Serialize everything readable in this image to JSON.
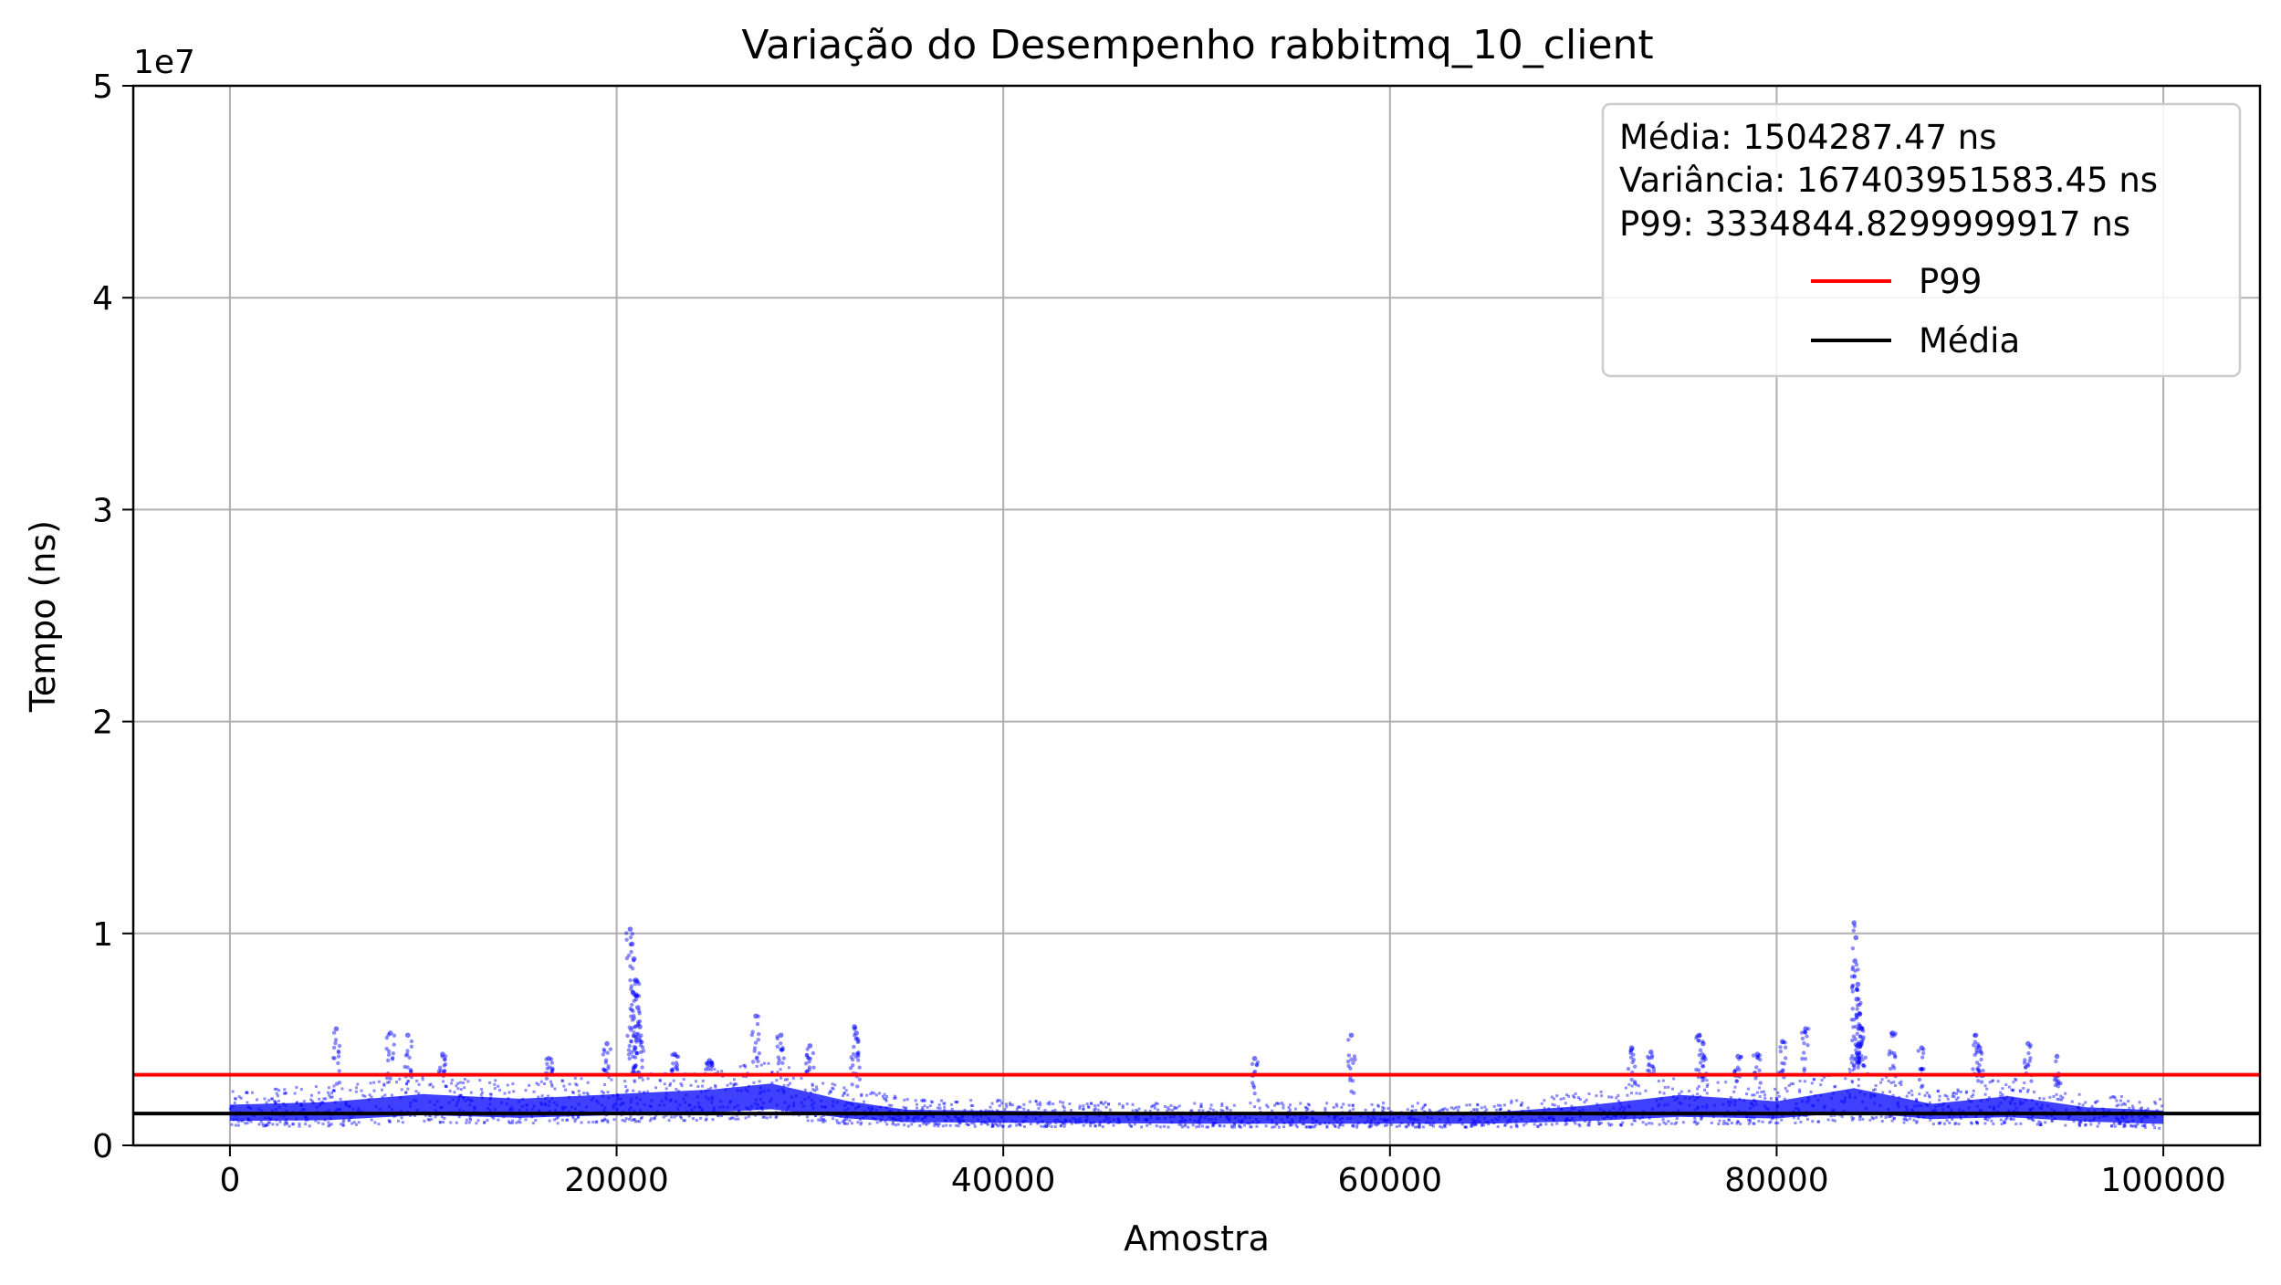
{
  "chart_data": {
    "type": "scatter",
    "title": "Variação do Desempenho rabbitmq_10_client",
    "xlabel": "Amostra",
    "ylabel": "Tempo (ns)",
    "y_offset_label": "1e7",
    "xlim": [
      -5000,
      105000
    ],
    "ylim": [
      0,
      50000000
    ],
    "x_ticks": [
      0,
      20000,
      40000,
      60000,
      80000,
      100000
    ],
    "x_tick_labels": [
      "0",
      "20000",
      "40000",
      "60000",
      "80000",
      "100000"
    ],
    "y_ticks": [
      0,
      10000000,
      20000000,
      30000000,
      40000000,
      50000000
    ],
    "y_tick_labels": [
      "0",
      "1",
      "2",
      "3",
      "4",
      "5"
    ],
    "grid": true,
    "legend_position": "top-right",
    "stats_text": [
      "Média: 1504287.47 ns",
      "Variância: 167403951583.45 ns",
      "P99: 3334844.8299999917 ns"
    ],
    "lines": [
      {
        "name": "P99",
        "value": 3334844.83,
        "color": "#ff0000"
      },
      {
        "name": "Média",
        "value": 1504287.47,
        "color": "#000000"
      }
    ],
    "scatter_color": "#0000ff",
    "series": [
      {
        "x_range": [
          0,
          100000
        ],
        "profile": [
          {
            "x": 0,
            "low": 900000,
            "high": 2600000
          },
          {
            "x": 5000,
            "low": 900000,
            "high": 2800000
          },
          {
            "x": 10000,
            "low": 1100000,
            "high": 3300000
          },
          {
            "x": 15000,
            "low": 1000000,
            "high": 3000000
          },
          {
            "x": 20000,
            "low": 1100000,
            "high": 3300000
          },
          {
            "x": 25000,
            "low": 1200000,
            "high": 3600000
          },
          {
            "x": 28000,
            "low": 1300000,
            "high": 4000000
          },
          {
            "x": 32000,
            "low": 1000000,
            "high": 2800000
          },
          {
            "x": 35000,
            "low": 900000,
            "high": 2200000
          },
          {
            "x": 50000,
            "low": 850000,
            "high": 2000000
          },
          {
            "x": 65000,
            "low": 850000,
            "high": 2000000
          },
          {
            "x": 70000,
            "low": 900000,
            "high": 2500000
          },
          {
            "x": 75000,
            "low": 1000000,
            "high": 3300000
          },
          {
            "x": 80000,
            "low": 1000000,
            "high": 2800000
          },
          {
            "x": 84000,
            "low": 1200000,
            "high": 3700000
          },
          {
            "x": 88000,
            "low": 1000000,
            "high": 2600000
          },
          {
            "x": 92000,
            "low": 1000000,
            "high": 3200000
          },
          {
            "x": 96000,
            "low": 900000,
            "high": 2400000
          },
          {
            "x": 100000,
            "low": 800000,
            "high": 2200000
          }
        ],
        "outliers": [
          {
            "x": 5500,
            "y": 5500000
          },
          {
            "x": 8300,
            "y": 5300000
          },
          {
            "x": 9200,
            "y": 5200000
          },
          {
            "x": 11000,
            "y": 4300000
          },
          {
            "x": 16500,
            "y": 4100000
          },
          {
            "x": 19500,
            "y": 4800000
          },
          {
            "x": 20700,
            "y": 10200000
          },
          {
            "x": 20800,
            "y": 9500000
          },
          {
            "x": 20900,
            "y": 8800000
          },
          {
            "x": 21000,
            "y": 7800000
          },
          {
            "x": 20850,
            "y": 7200000
          },
          {
            "x": 21100,
            "y": 6500000
          },
          {
            "x": 21200,
            "y": 5600000
          },
          {
            "x": 23000,
            "y": 4300000
          },
          {
            "x": 24800,
            "y": 4000000
          },
          {
            "x": 27200,
            "y": 6100000
          },
          {
            "x": 28500,
            "y": 5200000
          },
          {
            "x": 30000,
            "y": 4700000
          },
          {
            "x": 32300,
            "y": 5600000
          },
          {
            "x": 32400,
            "y": 5300000
          },
          {
            "x": 53000,
            "y": 4100000
          },
          {
            "x": 58000,
            "y": 5200000
          },
          {
            "x": 72500,
            "y": 4600000
          },
          {
            "x": 73500,
            "y": 4400000
          },
          {
            "x": 76000,
            "y": 5200000
          },
          {
            "x": 76200,
            "y": 4800000
          },
          {
            "x": 78000,
            "y": 4200000
          },
          {
            "x": 79000,
            "y": 4300000
          },
          {
            "x": 80300,
            "y": 4900000
          },
          {
            "x": 81500,
            "y": 5500000
          },
          {
            "x": 84000,
            "y": 10500000
          },
          {
            "x": 84100,
            "y": 9800000
          },
          {
            "x": 84050,
            "y": 8700000
          },
          {
            "x": 84200,
            "y": 7600000
          },
          {
            "x": 84150,
            "y": 6900000
          },
          {
            "x": 84300,
            "y": 6200000
          },
          {
            "x": 84400,
            "y": 5500000
          },
          {
            "x": 86000,
            "y": 5300000
          },
          {
            "x": 87500,
            "y": 4600000
          },
          {
            "x": 90300,
            "y": 5200000
          },
          {
            "x": 90500,
            "y": 4600000
          },
          {
            "x": 93000,
            "y": 4800000
          },
          {
            "x": 94500,
            "y": 4200000
          }
        ]
      }
    ]
  }
}
